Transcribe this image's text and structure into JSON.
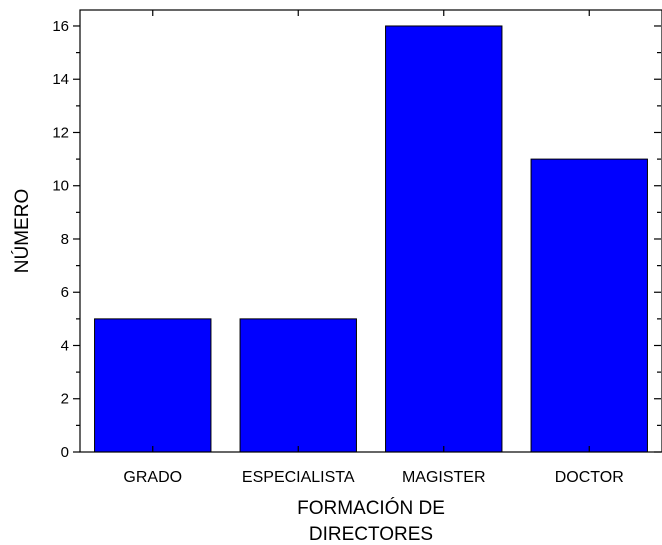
{
  "chart_data": {
    "type": "bar",
    "categories": [
      "GRADO",
      "ESPECIALISTA",
      "MAGISTER",
      "DOCTOR"
    ],
    "values": [
      5,
      5,
      16,
      11
    ],
    "xlabel_lines": [
      "FORMACIÓN DE",
      "DIRECTORES"
    ],
    "ylabel": "NÚMERO",
    "ylim": [
      0,
      16.6
    ],
    "yticks": [
      "0",
      "2",
      "4",
      "6",
      "8",
      "10",
      "12",
      "14",
      "16"
    ],
    "bar_color": "#0000ff",
    "bar_edge_color": "#000000",
    "grid": false,
    "legend": "none"
  }
}
